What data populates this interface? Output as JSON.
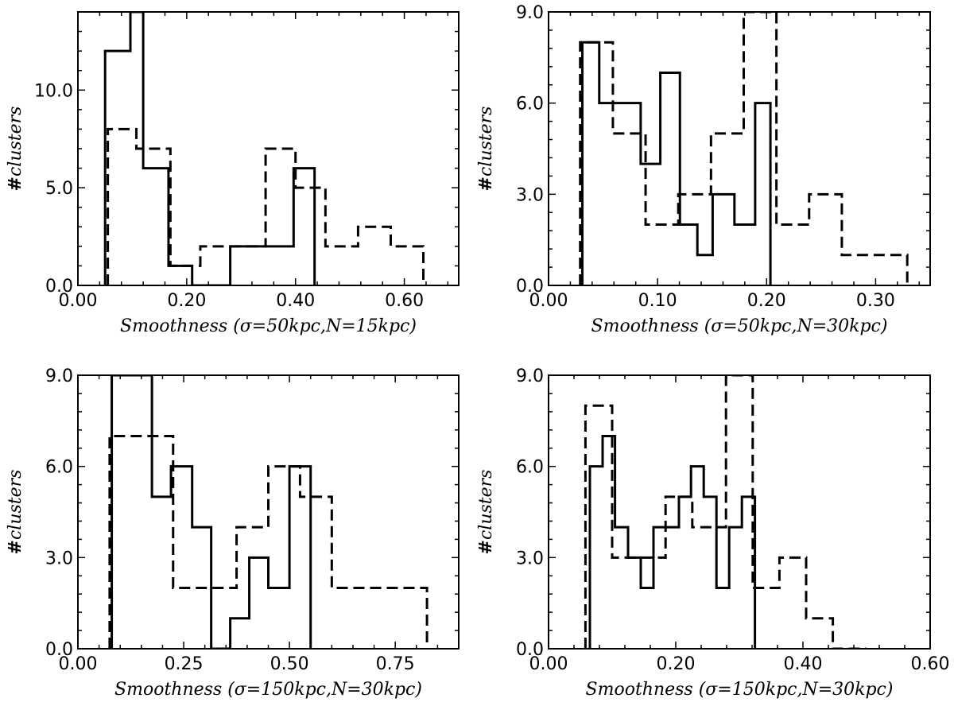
{
  "chart_data": [
    {
      "type": "histogram",
      "xlabel": "Smoothness (σ=50kpc,N=15kpc)",
      "ylabel": "#clusters",
      "xlim": [
        0,
        0.7
      ],
      "ylim": [
        0,
        14
      ],
      "xticks": [
        0,
        0.2,
        0.4,
        0.6
      ],
      "xtick_labels": [
        "0.00",
        "0.20",
        "0.40",
        "0.60"
      ],
      "yticks": [
        0,
        5,
        10
      ],
      "ytick_labels": [
        "0.0",
        "5.0",
        "10.0"
      ],
      "series": [
        {
          "style": "solid",
          "edges": [
            0.05,
            0.0965,
            0.12,
            0.1665,
            0.21,
            0.28,
            0.3965,
            0.435
          ],
          "values": [
            12,
            14,
            6,
            1,
            0,
            2,
            6
          ]
        },
        {
          "style": "dashed",
          "edges": [
            0.055,
            0.1075,
            0.17,
            0.225,
            0.285,
            0.345,
            0.4,
            0.455,
            0.515,
            0.575,
            0.635
          ],
          "values": [
            8,
            7,
            1,
            2,
            2,
            7,
            5,
            2,
            3,
            2
          ]
        }
      ]
    },
    {
      "type": "histogram",
      "xlabel": "Smoothness (σ=50kpc,N=30kpc)",
      "ylabel": "#clusters",
      "xlim": [
        0,
        0.35
      ],
      "ylim": [
        0,
        9
      ],
      "xticks": [
        0,
        0.1,
        0.2,
        0.3
      ],
      "xtick_labels": [
        "0.00",
        "0.10",
        "0.20",
        "0.30"
      ],
      "yticks": [
        0,
        3,
        6,
        9
      ],
      "ytick_labels": [
        "0.0",
        "3.0",
        "6.0",
        "9.0"
      ],
      "series": [
        {
          "style": "solid",
          "edges": [
            0.031,
            0.0465,
            0.0745,
            0.0845,
            0.1025,
            0.1205,
            0.1365,
            0.1505,
            0.1705,
            0.1895,
            0.2035
          ],
          "values": [
            8,
            6,
            6,
            4,
            7,
            2,
            1,
            3,
            2,
            6
          ]
        },
        {
          "style": "dashed",
          "edges": [
            0.029,
            0.059,
            0.089,
            0.119,
            0.149,
            0.179,
            0.209,
            0.239,
            0.269,
            0.299,
            0.329
          ],
          "values": [
            8,
            5,
            2,
            3,
            5,
            9,
            2,
            3,
            1,
            1
          ]
        }
      ]
    },
    {
      "type": "histogram",
      "xlabel": "Smoothness (σ=150kpc,N=30kpc)",
      "ylabel": "#clusters",
      "xlim": [
        0,
        0.9
      ],
      "ylim": [
        0,
        9
      ],
      "xticks": [
        0,
        0.25,
        0.5,
        0.75
      ],
      "xtick_labels": [
        "0.00",
        "0.25",
        "0.50",
        "0.75"
      ],
      "yticks": [
        0,
        3,
        6,
        9
      ],
      "ytick_labels": [
        "0.0",
        "3.0",
        "6.0",
        "9.0"
      ],
      "series": [
        {
          "style": "solid",
          "edges": [
            0.08,
            0.175,
            0.22,
            0.27,
            0.315,
            0.36,
            0.405,
            0.45,
            0.5,
            0.55
          ],
          "values": [
            9,
            5,
            6,
            4,
            0,
            1,
            3,
            2,
            6
          ]
        },
        {
          "style": "dashed",
          "edges": [
            0.075,
            0.225,
            0.3,
            0.375,
            0.45,
            0.525,
            0.6,
            0.675,
            0.825
          ],
          "values": [
            7,
            2,
            2,
            4,
            6,
            5,
            2,
            2
          ]
        }
      ]
    },
    {
      "type": "histogram",
      "xlabel": "Smoothness (σ=150kpc,N=30kpc)",
      "ylabel": "#clusters",
      "xlim": [
        0,
        0.6
      ],
      "ylim": [
        0,
        9
      ],
      "xticks": [
        0,
        0.2,
        0.4,
        0.6
      ],
      "xtick_labels": [
        "0.00",
        "0.20",
        "0.40",
        "0.60"
      ],
      "yticks": [
        0,
        3,
        6,
        9
      ],
      "ytick_labels": [
        "0.0",
        "3.0",
        "6.0",
        "9.0"
      ],
      "series": [
        {
          "style": "solid",
          "edges": [
            0.065,
            0.085,
            0.1045,
            0.125,
            0.145,
            0.165,
            0.1845,
            0.205,
            0.224,
            0.244,
            0.264,
            0.284,
            0.304,
            0.3245
          ],
          "values": [
            6,
            7,
            4,
            3,
            2,
            4,
            4,
            5,
            6,
            5,
            2,
            4,
            5
          ]
        },
        {
          "style": "dashed",
          "edges": [
            0.058,
            0.1,
            0.142,
            0.184,
            0.226,
            0.279,
            0.321,
            0.363,
            0.405,
            0.447,
            0.5
          ],
          "values": [
            8,
            3,
            3,
            5,
            4,
            9,
            2,
            3,
            1,
            0
          ]
        }
      ]
    }
  ]
}
